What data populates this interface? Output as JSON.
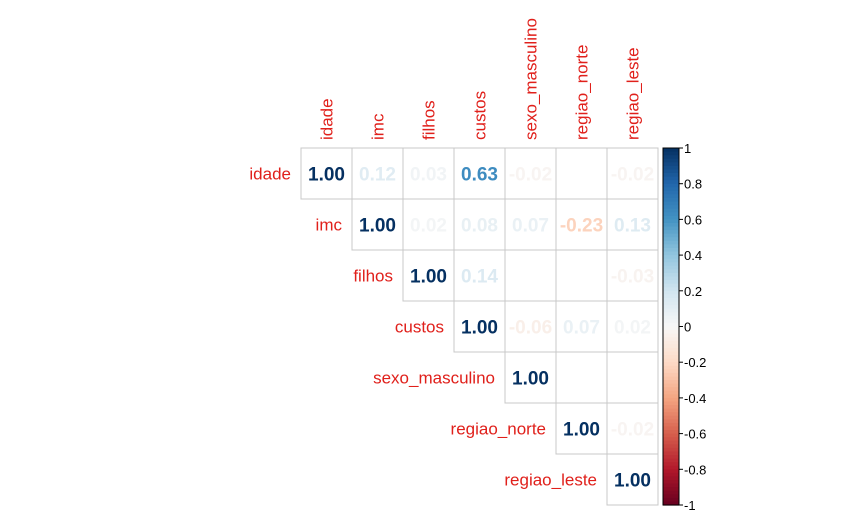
{
  "chart_data": {
    "type": "heatmap",
    "variant": "correlation-matrix-upper-triangle",
    "variables": [
      "idade",
      "imc",
      "filhos",
      "custos",
      "sexo_masculino",
      "regiao_norte",
      "regiao_leste"
    ],
    "matrix": [
      [
        1.0,
        0.12,
        0.03,
        0.63,
        -0.02,
        0.0,
        -0.02
      ],
      [
        null,
        1.0,
        0.02,
        0.08,
        0.07,
        -0.23,
        0.13
      ],
      [
        null,
        null,
        1.0,
        0.14,
        0.0,
        0.0,
        -0.03
      ],
      [
        null,
        null,
        null,
        1.0,
        -0.06,
        0.07,
        0.02
      ],
      [
        null,
        null,
        null,
        null,
        1.0,
        0.0,
        0.0
      ],
      [
        null,
        null,
        null,
        null,
        null,
        1.0,
        -0.02
      ],
      [
        null,
        null,
        null,
        null,
        null,
        null,
        1.0
      ]
    ],
    "cell_labels": [
      [
        "1.00",
        "0.12",
        "0.03",
        "0.63",
        "-0.02",
        "",
        "-0.02"
      ],
      [
        "",
        "1.00",
        "0.02",
        "0.08",
        "0.07",
        "-0.23",
        "0.13"
      ],
      [
        "",
        "",
        "1.00",
        "0.14",
        "",
        "",
        "-0.03"
      ],
      [
        "",
        "",
        "",
        "1.00",
        "-0.06",
        "0.07",
        "0.02"
      ],
      [
        "",
        "",
        "",
        "",
        "1.00",
        "",
        ""
      ],
      [
        "",
        "",
        "",
        "",
        "",
        "1.00",
        "-0.02"
      ],
      [
        "",
        "",
        "",
        "",
        "",
        "",
        "1.00"
      ]
    ],
    "color_scale": {
      "range": [
        -1,
        1
      ],
      "ticks": [
        "1",
        "0.8",
        "0.6",
        "0.4",
        "0.2",
        "0",
        "-0.2",
        "-0.4",
        "-0.6",
        "-0.8",
        "-1"
      ],
      "low_color": "#67001f",
      "mid_color": "#f7f7f7",
      "high_color": "#053061"
    },
    "label_color": "#e0201b",
    "grid": true
  }
}
